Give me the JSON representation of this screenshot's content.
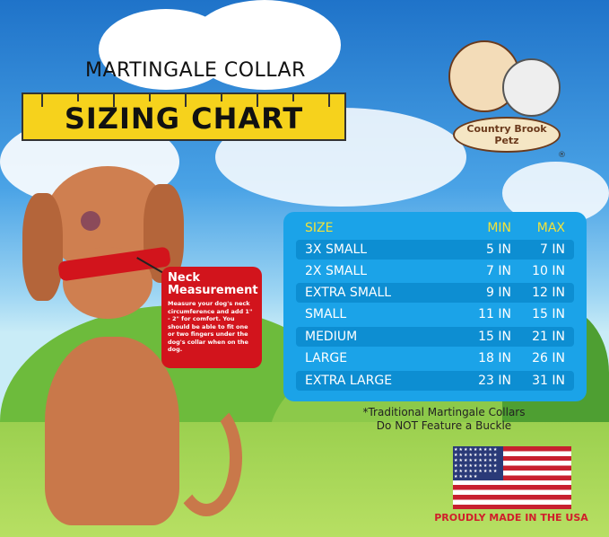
{
  "title": {
    "line1": "MARTINGALE COLLAR",
    "line2": "SIZING CHART"
  },
  "logo": {
    "text": "Country Brook Petz",
    "registered": "®"
  },
  "callout": {
    "heading": "Neck Measurement",
    "body": "Measure your dog's neck circumference and add 1\" - 2\" for comfort. You should be able to fit one or two fingers under the dog's collar when on the dog."
  },
  "table": {
    "headers": [
      "SIZE",
      "MIN",
      "MAX"
    ],
    "rows": [
      [
        "3X SMALL",
        "5 IN",
        "7 IN"
      ],
      [
        "2X SMALL",
        "7 IN",
        "10 IN"
      ],
      [
        "EXTRA SMALL",
        "9 IN",
        "12 IN"
      ],
      [
        "SMALL",
        "11 IN",
        "15 IN"
      ],
      [
        "MEDIUM",
        "15 IN",
        "21 IN"
      ],
      [
        "LARGE",
        "18 IN",
        "26 IN"
      ],
      [
        "EXTRA LARGE",
        "23 IN",
        "31 IN"
      ]
    ]
  },
  "note": {
    "line1": "*Traditional Martingale Collars",
    "line2": "Do NOT Feature a Buckle"
  },
  "footer": {
    "made_in": "PROUDLY MADE IN THE USA"
  },
  "colors": {
    "table_bg": "#1ba3e8",
    "header_text": "#f2e23a",
    "ruler": "#f6d21c",
    "callout": "#d2141c",
    "dog": "#c9784a",
    "collar": "#d2141c"
  }
}
